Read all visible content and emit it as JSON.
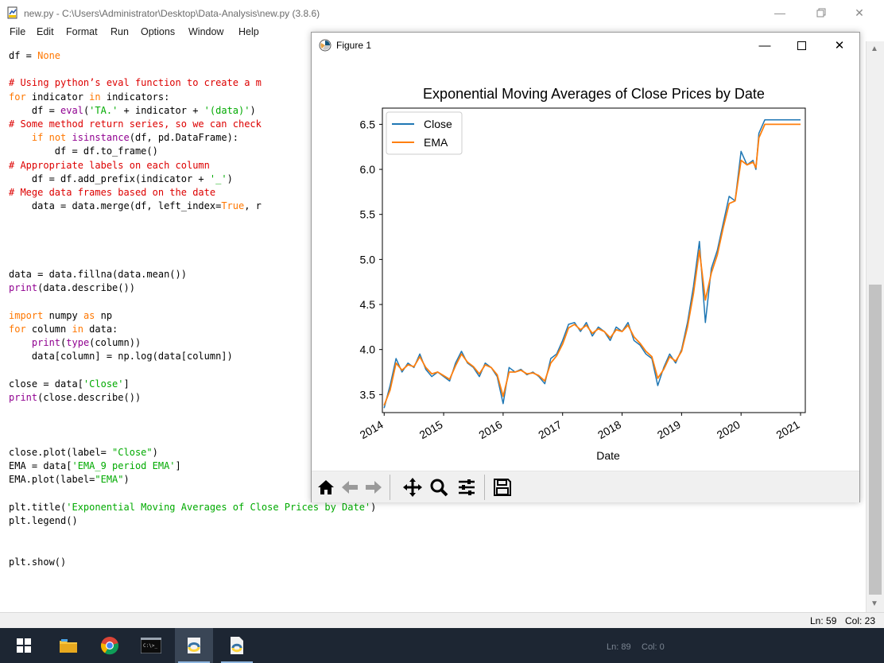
{
  "idle": {
    "title": "new.py - C:\\Users\\Administrator\\Desktop\\Data-Analysis\\new.py (3.8.6)",
    "menu": [
      "File",
      "Edit",
      "Format",
      "Run",
      "Options",
      "Window",
      "Help"
    ],
    "status": {
      "line": "Ln: 59",
      "col": "Col: 23"
    }
  },
  "code_lines": [
    [
      {
        "t": "df = "
      },
      {
        "t": "None",
        "c": "kw"
      }
    ],
    [],
    [
      {
        "t": "# Using python’s eval function to create a m",
        "c": "cm"
      }
    ],
    [
      {
        "t": "for",
        "c": "kw"
      },
      {
        "t": " indicator "
      },
      {
        "t": "in",
        "c": "kw"
      },
      {
        "t": " indicators:"
      }
    ],
    [
      {
        "t": "    df = "
      },
      {
        "t": "eval",
        "c": "bi"
      },
      {
        "t": "("
      },
      {
        "t": "'TA.'",
        "c": "st"
      },
      {
        "t": " + indicator + "
      },
      {
        "t": "'(data)'",
        "c": "st"
      },
      {
        "t": ")"
      }
    ],
    [
      {
        "t": "# Some method return series, so we can check",
        "c": "cm"
      }
    ],
    [
      {
        "t": "    "
      },
      {
        "t": "if",
        "c": "kw"
      },
      {
        "t": " "
      },
      {
        "t": "not",
        "c": "kw"
      },
      {
        "t": " "
      },
      {
        "t": "isinstance",
        "c": "bi"
      },
      {
        "t": "(df, pd.DataFrame):"
      }
    ],
    [
      {
        "t": "        df = df.to_frame()"
      }
    ],
    [
      {
        "t": "# Appropriate labels on each column",
        "c": "cm"
      }
    ],
    [
      {
        "t": "    df = df.add_prefix(indicator + "
      },
      {
        "t": "'_'",
        "c": "st"
      },
      {
        "t": ")"
      }
    ],
    [
      {
        "t": "# Mege data frames based on the date",
        "c": "cm"
      }
    ],
    [
      {
        "t": "    data = data.merge(df, left_index="
      },
      {
        "t": "True",
        "c": "kw"
      },
      {
        "t": ", r"
      }
    ],
    [],
    [],
    [],
    [],
    [
      {
        "t": "data = data.fillna(data.mean())"
      }
    ],
    [
      {
        "t": "print",
        "c": "bi"
      },
      {
        "t": "(data.describe())"
      }
    ],
    [],
    [
      {
        "t": "import",
        "c": "kw"
      },
      {
        "t": " numpy "
      },
      {
        "t": "as",
        "c": "kw"
      },
      {
        "t": " np"
      }
    ],
    [
      {
        "t": "for",
        "c": "kw"
      },
      {
        "t": " column "
      },
      {
        "t": "in",
        "c": "kw"
      },
      {
        "t": " data:"
      }
    ],
    [
      {
        "t": "    "
      },
      {
        "t": "print",
        "c": "bi"
      },
      {
        "t": "("
      },
      {
        "t": "type",
        "c": "bi"
      },
      {
        "t": "(column))"
      }
    ],
    [
      {
        "t": "    data[column] = np.log(data[column])"
      }
    ],
    [],
    [
      {
        "t": "close = data["
      },
      {
        "t": "'Close'",
        "c": "st"
      },
      {
        "t": "]"
      }
    ],
    [
      {
        "t": "print",
        "c": "bi"
      },
      {
        "t": "(close.describe())"
      }
    ],
    [],
    [],
    [],
    [
      {
        "t": "close.plot(label= "
      },
      {
        "t": "\"Close\"",
        "c": "st"
      },
      {
        "t": ")"
      }
    ],
    [
      {
        "t": "EMA = data["
      },
      {
        "t": "'EMA_9 period EMA'",
        "c": "st"
      },
      {
        "t": "]"
      }
    ],
    [
      {
        "t": "EMA.plot(label="
      },
      {
        "t": "\"EMA\"",
        "c": "st"
      },
      {
        "t": ")"
      }
    ],
    [],
    [
      {
        "t": "plt.title("
      },
      {
        "t": "'Exponential Moving Averages of Close Prices by Date'",
        "c": "st"
      },
      {
        "t": ")"
      }
    ],
    [
      {
        "t": "plt.legend()"
      }
    ],
    [],
    [],
    [
      {
        "t": "plt.show()"
      }
    ]
  ],
  "figure": {
    "title": "Figure 1",
    "toolbar": [
      "home-icon",
      "back-icon",
      "forward-icon",
      "pan-icon",
      "zoom-icon",
      "configure-subplots-icon",
      "save-icon"
    ]
  },
  "taskbar": {
    "items": [
      "windows-start-icon",
      "file-explorer-icon",
      "chrome-icon",
      "command-prompt-icon",
      "python-idle-icon",
      "python-file-icon"
    ],
    "ghost_text": {
      "line": "Ln: 89",
      "col": "Col: 0"
    }
  },
  "chart_data": {
    "type": "line",
    "title": "Exponential Moving Averages of Close Prices by Date",
    "xlabel": "Date",
    "ylabel": "",
    "xlim": [
      2013.97,
      2021.08
    ],
    "ylim": [
      3.3,
      6.68
    ],
    "x_ticks": [
      2014,
      2015,
      2016,
      2017,
      2018,
      2019,
      2020,
      2021
    ],
    "y_ticks": [
      3.5,
      4.0,
      4.5,
      5.0,
      5.5,
      6.0,
      6.5
    ],
    "y_tick_labels": [
      "3.5",
      "4.0",
      "4.5",
      "5.0",
      "5.5",
      "6.0",
      "6.5"
    ],
    "grid": false,
    "legend": "upper left",
    "x": [
      2014.0,
      2014.1,
      2014.2,
      2014.3,
      2014.4,
      2014.5,
      2014.6,
      2014.7,
      2014.8,
      2014.9,
      2015.0,
      2015.1,
      2015.2,
      2015.3,
      2015.4,
      2015.5,
      2015.6,
      2015.7,
      2015.8,
      2015.9,
      2016.0,
      2016.1,
      2016.2,
      2016.3,
      2016.4,
      2016.5,
      2016.6,
      2016.7,
      2016.8,
      2016.9,
      2017.0,
      2017.1,
      2017.2,
      2017.3,
      2017.4,
      2017.5,
      2017.6,
      2017.7,
      2017.8,
      2017.9,
      2018.0,
      2018.1,
      2018.2,
      2018.3,
      2018.4,
      2018.5,
      2018.6,
      2018.7,
      2018.8,
      2018.9,
      2019.0,
      2019.1,
      2019.2,
      2019.3,
      2019.4,
      2019.5,
      2019.6,
      2019.7,
      2019.8,
      2019.9,
      2020.0,
      2020.1,
      2020.2,
      2020.25,
      2020.3,
      2020.4,
      2020.5,
      2020.6,
      2020.65,
      2020.7,
      2020.8,
      2020.85,
      2020.9,
      2021.0
    ],
    "series": [
      {
        "name": "Close",
        "color": "#1f77b4",
        "values": [
          3.35,
          3.6,
          3.9,
          3.75,
          3.85,
          3.8,
          3.95,
          3.78,
          3.7,
          3.75,
          3.7,
          3.65,
          3.85,
          3.98,
          3.85,
          3.8,
          3.7,
          3.85,
          3.8,
          3.7,
          3.4,
          3.8,
          3.75,
          3.78,
          3.72,
          3.75,
          3.7,
          3.62,
          3.9,
          3.95,
          4.1,
          4.28,
          4.3,
          4.2,
          4.3,
          4.15,
          4.25,
          4.2,
          4.1,
          4.25,
          4.2,
          4.3,
          4.1,
          4.05,
          3.95,
          3.9,
          3.6,
          3.8,
          3.95,
          3.85,
          4.0,
          4.3,
          4.7,
          5.2,
          4.3,
          4.9,
          5.1,
          5.4,
          5.7,
          5.65,
          6.2,
          6.05,
          6.1,
          6.0,
          6.4,
          6.55,
          6.55,
          6.55,
          6.55,
          6.55,
          6.55,
          6.55,
          6.55,
          6.55
        ]
      },
      {
        "name": "EMA",
        "color": "#ff7f0e",
        "values": [
          3.38,
          3.55,
          3.85,
          3.77,
          3.83,
          3.81,
          3.92,
          3.8,
          3.73,
          3.75,
          3.71,
          3.67,
          3.82,
          3.95,
          3.86,
          3.81,
          3.73,
          3.83,
          3.8,
          3.72,
          3.48,
          3.75,
          3.75,
          3.77,
          3.73,
          3.74,
          3.71,
          3.65,
          3.85,
          3.93,
          4.06,
          4.24,
          4.28,
          4.22,
          4.27,
          4.18,
          4.23,
          4.2,
          4.13,
          4.22,
          4.2,
          4.27,
          4.14,
          4.07,
          3.98,
          3.92,
          3.68,
          3.78,
          3.92,
          3.87,
          3.98,
          4.25,
          4.62,
          5.1,
          4.55,
          4.85,
          5.05,
          5.35,
          5.62,
          5.65,
          6.1,
          6.05,
          6.08,
          6.02,
          6.35,
          6.5,
          6.5,
          6.5,
          6.5,
          6.5,
          6.5,
          6.5,
          6.5,
          6.5
        ]
      }
    ]
  }
}
